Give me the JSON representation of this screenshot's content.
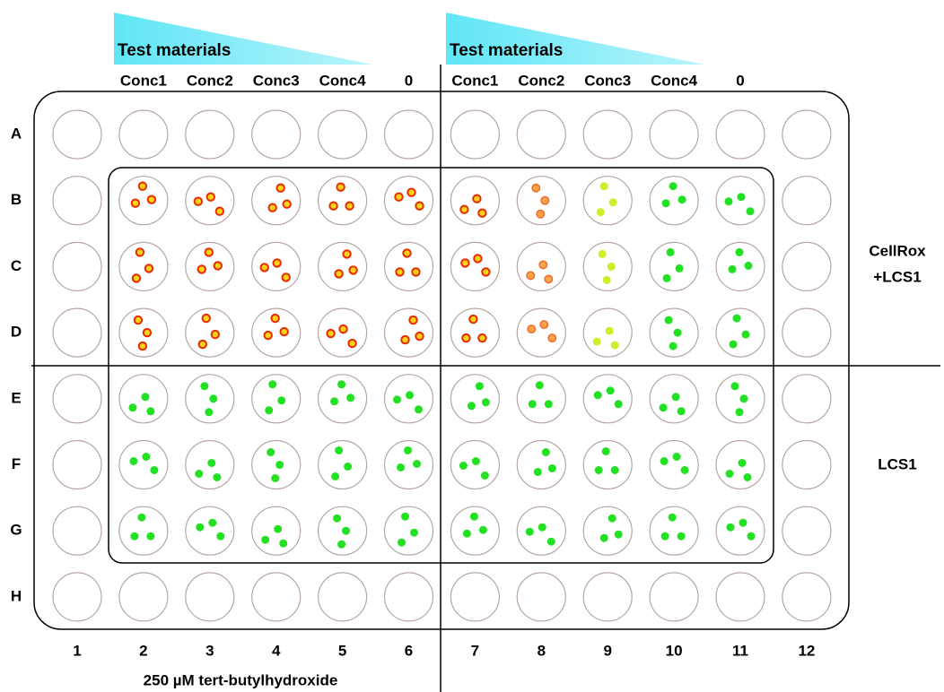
{
  "header": {
    "left": {
      "title": "Test materials",
      "concentrations": [
        "Conc1",
        "Conc2",
        "Conc3",
        "Conc4",
        "0"
      ]
    },
    "right": {
      "title": "Test materials",
      "concentrations": [
        "Conc1",
        "Conc2",
        "Conc3",
        "Conc4",
        "0"
      ]
    }
  },
  "rows": [
    "A",
    "B",
    "C",
    "D",
    "E",
    "F",
    "G",
    "H"
  ],
  "columns": [
    "1",
    "2",
    "3",
    "4",
    "5",
    "6",
    "7",
    "8",
    "9",
    "10",
    "11",
    "12"
  ],
  "side_labels": [
    [
      "CellRox",
      "+LCS1"
    ],
    [
      "LCS1"
    ]
  ],
  "footer": "250 µM tert-butylhydroxide"
}
